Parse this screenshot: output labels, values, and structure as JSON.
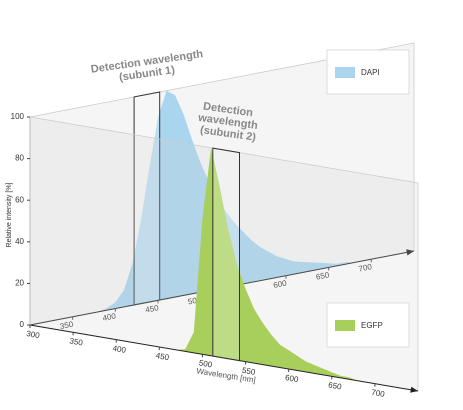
{
  "chart_data": [
    {
      "type": "area",
      "x": [
        380,
        390,
        400,
        410,
        420,
        430,
        440,
        450,
        460,
        470,
        480,
        490,
        500,
        510,
        520,
        530,
        540,
        550,
        560,
        570,
        580,
        590,
        600,
        610,
        620,
        630,
        640,
        650,
        660,
        670,
        680,
        690,
        700
      ],
      "series": [
        {
          "name": "DAPI",
          "color": "#a9d5ef",
          "values": [
            0,
            1,
            3,
            8,
            20,
            40,
            65,
            88,
            100,
            97,
            87,
            74,
            62,
            52,
            43,
            36,
            30,
            25,
            20,
            16,
            13,
            10,
            8,
            6,
            5,
            4,
            3,
            2,
            1,
            1,
            0,
            0,
            0
          ]
        }
      ],
      "xlim": [
        300,
        750
      ],
      "xticks": [
        350,
        400,
        450,
        500,
        550,
        600,
        650,
        700
      ],
      "ylim": [
        0,
        100
      ],
      "annotation": {
        "text": [
          "Detection wavelength",
          "(subunit 1)"
        ],
        "window": [
          422,
          452
        ]
      }
    },
    {
      "type": "area",
      "x": [
        380,
        390,
        400,
        410,
        420,
        430,
        440,
        450,
        460,
        470,
        480,
        490,
        500,
        510,
        520,
        530,
        540,
        550,
        560,
        570,
        580,
        590,
        600,
        610,
        620,
        630,
        640,
        650,
        660,
        670,
        680,
        690,
        700
      ],
      "series": [
        {
          "name": "EGFP",
          "color": "#a8cf5c",
          "values": [
            0,
            0,
            0,
            0,
            0,
            0,
            0,
            0,
            0,
            0,
            1,
            10,
            65,
            100,
            82,
            62,
            46,
            35,
            26,
            20,
            15,
            11,
            9,
            7,
            5,
            4,
            3,
            2,
            1,
            1,
            0,
            0,
            0
          ]
        }
      ],
      "xlim": [
        300,
        750
      ],
      "xticks": [
        300,
        350,
        400,
        450,
        500,
        550,
        600,
        650,
        700
      ],
      "ylim": [
        0,
        100
      ],
      "yticks": [
        0,
        20,
        40,
        60,
        80,
        100
      ],
      "y_label": "Relative intensity [%]",
      "x_label": "Wavelength [nm]",
      "annotation": {
        "text": [
          "Detection",
          "wavelength",
          "(subunit 2)"
        ],
        "window": [
          512,
          543
        ]
      }
    }
  ]
}
